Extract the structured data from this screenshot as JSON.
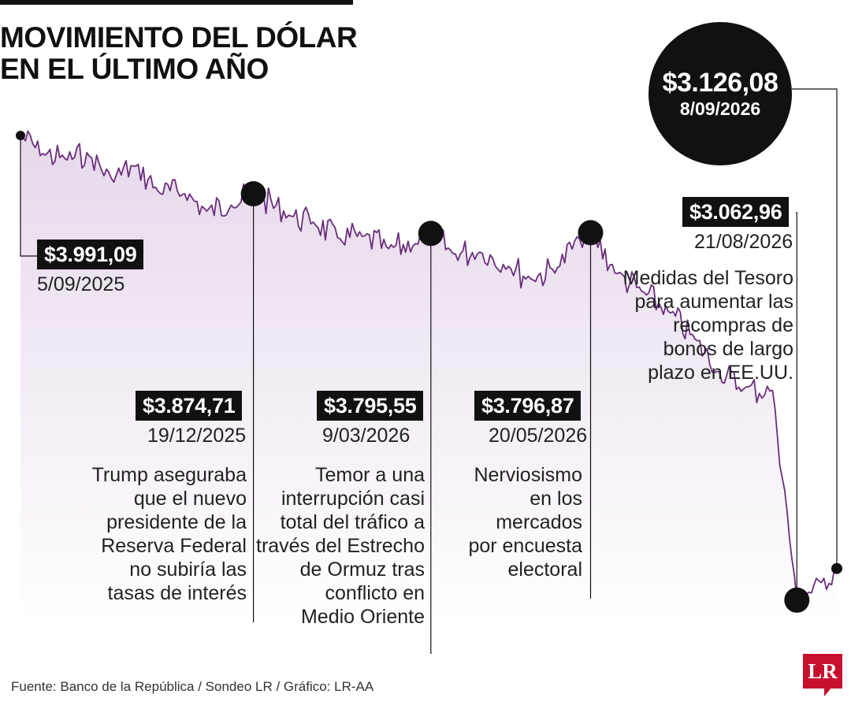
{
  "title": {
    "line1": "MOVIMIENTO DEL DÓLAR",
    "line2": "EN EL ÚLTIMO AÑO"
  },
  "chart_data": {
    "type": "area",
    "y_unit": "COP",
    "x": [
      "2025-09-05",
      "2025-09-15",
      "2025-09-25",
      "2025-10-06",
      "2025-10-16",
      "2025-10-27",
      "2025-11-06",
      "2025-11-18",
      "2025-11-28",
      "2025-12-09",
      "2025-12-19",
      "2026-01-05",
      "2026-01-15",
      "2026-01-27",
      "2026-02-06",
      "2026-02-18",
      "2026-03-02",
      "2026-03-09",
      "2026-03-19",
      "2026-03-31",
      "2026-04-13",
      "2026-04-23",
      "2026-05-05",
      "2026-05-15",
      "2026-05-20",
      "2026-06-01",
      "2026-06-12",
      "2026-06-24",
      "2026-07-06",
      "2026-07-16",
      "2026-07-28",
      "2026-08-10",
      "2026-08-21",
      "2026-09-01",
      "2026-09-08"
    ],
    "values": [
      3991.09,
      3955,
      3945,
      3950,
      3905,
      3930,
      3880,
      3875,
      3840,
      3852,
      3874.71,
      3830,
      3818,
      3785,
      3790,
      3765,
      3775,
      3795.55,
      3755,
      3758,
      3730,
      3705,
      3727,
      3785,
      3796.87,
      3715,
      3680,
      3640,
      3585,
      3520,
      3485,
      3482,
      3062.96,
      3098,
      3126.08
    ],
    "ylim": [
      3050,
      4010
    ],
    "callouts": [
      {
        "value_label": "$3.991,09",
        "date_label": "5/09/2025",
        "note": []
      },
      {
        "value_label": "$3.874,71",
        "date_label": "19/12/2025",
        "note": [
          "Trump aseguraba",
          "que el nuevo",
          "presidente de la",
          "Reserva Federal",
          "no subiría las",
          "tasas de interés"
        ]
      },
      {
        "value_label": "$3.795,55",
        "date_label": "9/03/2026",
        "note": [
          "Temor a una",
          "interrupción casi",
          "total del tráfico a",
          "través del Estrecho",
          "de Ormuz tras",
          "conflicto en",
          "Medio Oriente"
        ]
      },
      {
        "value_label": "$3.796,87",
        "date_label": "20/05/2026",
        "note": [
          "Nerviosismo",
          "en los",
          "mercados",
          "por encuesta",
          "electoral"
        ]
      },
      {
        "value_label": "$3.062,96",
        "date_label": "21/08/2026",
        "note": [
          "Medidas del Tesoro",
          "para aumentar las",
          "recompras de",
          "bonos de largo",
          "plazo en EE.UU."
        ]
      },
      {
        "value_label": "$3.126,08",
        "date_label": "8/09/2026",
        "note": []
      }
    ],
    "colors": {
      "line": "#6a2e7c",
      "fill_top": "#e6d8ea",
      "fill_bottom": "#ffffff",
      "markers": "#111111"
    }
  },
  "source": "Fuente: Banco de la República / Sondeo LR / Gráfico: LR-AA",
  "logo": "LR"
}
